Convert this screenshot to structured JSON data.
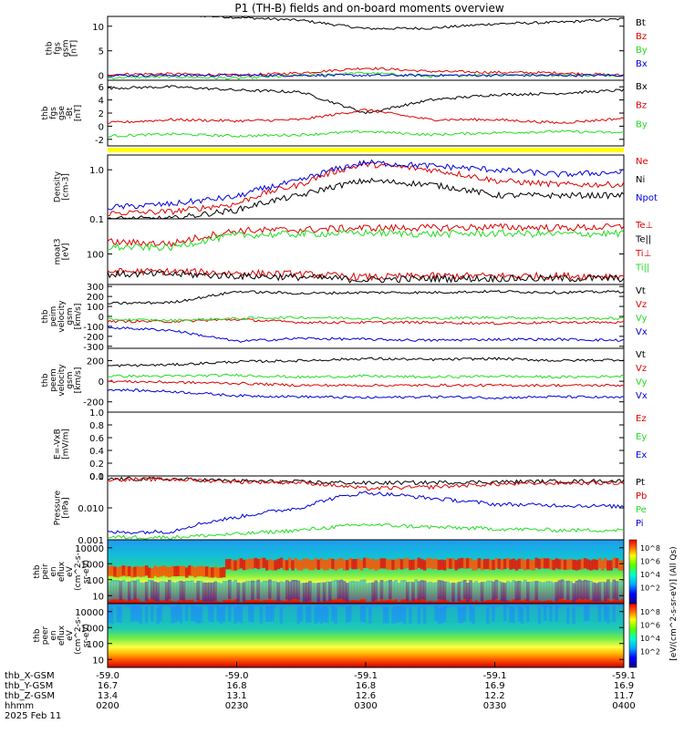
{
  "title": "P1 (TH-B) fields and on-board moments overview",
  "colors": {
    "black": "#000000",
    "red": "#e00000",
    "green": "#22dd22",
    "blue": "#0000dd",
    "yellow": "#ffff00"
  },
  "panels": [
    {
      "id": "fgs_gsm",
      "ylabel": [
        "thb",
        "fgs",
        "gsm",
        "[nT]"
      ],
      "ticks": [
        {
          "v": 10,
          "label": "10"
        },
        {
          "v": 5,
          "label": "5"
        },
        {
          "v": 0,
          "label": "0"
        }
      ],
      "legend": [
        {
          "label": "Bt",
          "color": "#000000"
        },
        {
          "label": "Bz",
          "color": "#e00000"
        },
        {
          "label": "By",
          "color": "#22dd22"
        },
        {
          "label": "Bx",
          "color": "#0000dd"
        }
      ]
    },
    {
      "id": "fgs_gse",
      "ylabel": [
        "thb",
        "fgs",
        "gse",
        "-Bt",
        "[nT]"
      ],
      "ticks": [
        {
          "v": 6,
          "label": "6"
        },
        {
          "v": 4,
          "label": "4"
        },
        {
          "v": 2,
          "label": "2"
        },
        {
          "v": 0,
          "label": "0"
        },
        {
          "v": -2,
          "label": "-2"
        }
      ],
      "legend": [
        {
          "label": "Bx",
          "color": "#000000"
        },
        {
          "label": "Bz",
          "color": "#e00000"
        },
        {
          "label": "By",
          "color": "#22dd22"
        }
      ]
    },
    {
      "id": "density",
      "ylabel": [
        "Density",
        "[cm-3]"
      ],
      "ticks": [
        {
          "v": 1.0,
          "label": "1.0"
        },
        {
          "v": 0.1,
          "label": "0.1"
        }
      ],
      "legend": [
        {
          "label": "Ne",
          "color": "#e00000"
        },
        {
          "label": "Ni",
          "color": "#000000"
        },
        {
          "label": "Npot",
          "color": "#0000dd"
        }
      ]
    },
    {
      "id": "temperature",
      "ylabel": [
        "moat3",
        "[eV]"
      ],
      "ticks": [
        {
          "v": 100,
          "label": "100"
        }
      ],
      "legend": [
        {
          "label": "Te⊥",
          "color": "#e00000"
        },
        {
          "label": "Te||",
          "color": "#000000"
        },
        {
          "label": "Ti⊥",
          "color": "#e00000"
        },
        {
          "label": "Ti||",
          "color": "#22dd22"
        }
      ]
    },
    {
      "id": "peim_velocity",
      "ylabel": [
        "thb",
        "peim",
        "velocity",
        "gsm",
        "[km/s]"
      ],
      "ticks": [
        {
          "v": 300,
          "label": "300"
        },
        {
          "v": 200,
          "label": "200"
        },
        {
          "v": 100,
          "label": "100"
        },
        {
          "v": 0,
          "label": "0"
        },
        {
          "v": -100,
          "label": "-100"
        },
        {
          "v": -200,
          "label": "-200"
        },
        {
          "v": -300,
          "label": "-300"
        }
      ],
      "legend": [
        {
          "label": "Vt",
          "color": "#000000"
        },
        {
          "label": "Vz",
          "color": "#e00000"
        },
        {
          "label": "Vy",
          "color": "#22dd22"
        },
        {
          "label": "Vx",
          "color": "#0000dd"
        }
      ]
    },
    {
      "id": "peem_velocity",
      "ylabel": [
        "thb",
        "peem",
        "velocity",
        "gsm",
        "[km/s]"
      ],
      "ticks": [
        {
          "v": 200,
          "label": "200"
        },
        {
          "v": 0,
          "label": "0"
        },
        {
          "v": -200,
          "label": "-200"
        }
      ],
      "legend": [
        {
          "label": "Vt",
          "color": "#000000"
        },
        {
          "label": "Vz",
          "color": "#e00000"
        },
        {
          "label": "Vy",
          "color": "#22dd22"
        },
        {
          "label": "Vx",
          "color": "#0000dd"
        }
      ]
    },
    {
      "id": "efield",
      "ylabel": [
        "E=-VxB",
        "[mV/m]"
      ],
      "ticks": [
        {
          "v": 1.0,
          "label": "1.0"
        },
        {
          "v": 0.8,
          "label": "0.8"
        },
        {
          "v": 0.6,
          "label": "0.6"
        },
        {
          "v": 0.4,
          "label": "0.4"
        },
        {
          "v": 0.2,
          "label": "0.2"
        },
        {
          "v": 0.0,
          "label": "0.0"
        }
      ],
      "legend": [
        {
          "label": "Ez",
          "color": "#e00000"
        },
        {
          "label": "Ey",
          "color": "#22dd22"
        },
        {
          "label": "Ex",
          "color": "#0000dd"
        }
      ]
    },
    {
      "id": "pressure",
      "ylabel": [
        "Pressure",
        "[nPa]"
      ],
      "ticks": [
        {
          "v": 0.1,
          "label": "0.1"
        },
        {
          "v": 0.01,
          "label": "0.010"
        },
        {
          "v": 0.001,
          "label": "0.001"
        }
      ],
      "legend": [
        {
          "label": "Pt",
          "color": "#000000"
        },
        {
          "label": "Pb",
          "color": "#e00000"
        },
        {
          "label": "Pe",
          "color": "#22dd22"
        },
        {
          "label": "Pi",
          "color": "#0000dd"
        }
      ]
    },
    {
      "id": "peir_spec",
      "ylabel": [
        "thb",
        "peir",
        "en",
        "eflux",
        "eV",
        "(cm^2-s-",
        "sr-eV)"
      ],
      "ticks": [
        {
          "v": 10000,
          "label": "10000"
        },
        {
          "v": 1000,
          "label": "1000"
        },
        {
          "v": 100,
          "label": "100"
        },
        {
          "v": 10,
          "label": "10"
        }
      ],
      "legend": []
    },
    {
      "id": "peer_spec",
      "ylabel": [
        "thb",
        "peer",
        "en",
        "eflux",
        "eV",
        "(cm^2-s-",
        "sr-eV)"
      ],
      "ticks": [
        {
          "v": 10000,
          "label": "10000"
        },
        {
          "v": 1000,
          "label": "1000"
        },
        {
          "v": 100,
          "label": "100"
        },
        {
          "v": 10,
          "label": "10"
        }
      ],
      "legend": []
    }
  ],
  "colorbar": {
    "label": "[eV/(cm^2-s-sr-eV)] (All Qs)",
    "ticks_upper": [
      "10^8",
      "10^6",
      "10^4",
      "10^2"
    ],
    "ticks_lower": [
      "10^8",
      "10^6",
      "10^4",
      "10^2"
    ]
  },
  "xaxis": {
    "rows": [
      {
        "label": "thb_X-GSM",
        "values": [
          "-59.0",
          "-59.0",
          "-59.1",
          "-59.1",
          "-59.1"
        ]
      },
      {
        "label": "thb_Y-GSM",
        "values": [
          "16.7",
          "16.8",
          "16.8",
          "16.9",
          "16.9"
        ]
      },
      {
        "label": "thb_Z-GSM",
        "values": [
          "13.4",
          "13.1",
          "12.6",
          "12.2",
          "11.7"
        ]
      },
      {
        "label": "hhmm",
        "values": [
          "0200",
          "0230",
          "0300",
          "0330",
          "0400"
        ]
      }
    ],
    "date": "2025 Feb 11"
  },
  "chart_data": {
    "type": "line",
    "title": "P1 (TH-B) fields and on-board moments overview",
    "x": [
      "0200",
      "0215",
      "0230",
      "0245",
      "0300",
      "0315",
      "0330",
      "0345",
      "0400"
    ],
    "panels": [
      {
        "name": "fgs_gsm",
        "ylim": [
          -1,
          12
        ],
        "series": [
          {
            "name": "Bt",
            "values": [
              12.3,
              12.4,
              11.8,
              11.2,
              9.5,
              9.6,
              10.5,
              10.8,
              11.5
            ]
          },
          {
            "name": "Bz",
            "values": [
              0.2,
              0.3,
              0.0,
              0.5,
              1.5,
              0.8,
              0.6,
              0.5,
              0.0
            ]
          },
          {
            "name": "By",
            "values": [
              -0.5,
              -0.3,
              -0.6,
              0.0,
              0.5,
              -0.2,
              0.2,
              0.0,
              0.0
            ]
          },
          {
            "name": "Bx",
            "values": [
              0.0,
              0.0,
              0.0,
              0.0,
              0.0,
              0.0,
              0.0,
              0.0,
              0.0
            ]
          }
        ]
      },
      {
        "name": "fgs_gse",
        "ylim": [
          -3,
          7
        ],
        "series": [
          {
            "name": "Bx",
            "values": [
              5.8,
              6.0,
              5.5,
              5.2,
              2.0,
              4.0,
              4.8,
              5.0,
              5.5
            ]
          },
          {
            "name": "Bz",
            "values": [
              0.5,
              1.0,
              0.8,
              1.0,
              2.5,
              1.0,
              1.0,
              0.5,
              1.2
            ]
          },
          {
            "name": "By",
            "values": [
              -1.5,
              -1.2,
              -1.5,
              -1.3,
              -0.8,
              -1.3,
              -1.0,
              -0.8,
              -1.0
            ]
          }
        ]
      },
      {
        "name": "density",
        "log": true,
        "ylim": [
          0.1,
          2.0
        ],
        "series": [
          {
            "name": "Ne",
            "values": [
              0.13,
              0.14,
              0.2,
              0.5,
              1.3,
              1.0,
              0.6,
              0.5,
              0.5
            ]
          },
          {
            "name": "Ni",
            "values": [
              0.1,
              0.1,
              0.15,
              0.3,
              0.6,
              0.5,
              0.3,
              0.3,
              0.3
            ]
          },
          {
            "name": "Npot",
            "values": [
              0.17,
              0.2,
              0.28,
              0.6,
              1.4,
              1.2,
              1.0,
              0.8,
              0.9
            ]
          }
        ]
      },
      {
        "name": "temperature",
        "log": true,
        "ylim": [
          30,
          400
        ],
        "series": [
          {
            "name": "Te⊥",
            "values": [
              50,
              50,
              47,
              45,
              40,
              42,
              42,
              42,
              42
            ]
          },
          {
            "name": "Te||",
            "values": [
              45,
              45,
              42,
              40,
              36,
              38,
              38,
              38,
              38
            ]
          },
          {
            "name": "Ti⊥",
            "values": [
              160,
              150,
              250,
              260,
              280,
              280,
              290,
              280,
              290
            ]
          },
          {
            "name": "Ti||",
            "values": [
              130,
              130,
              210,
              220,
              230,
              220,
              225,
              220,
              225
            ]
          }
        ]
      },
      {
        "name": "peim_velocity",
        "ylim": [
          -320,
          320
        ],
        "series": [
          {
            "name": "Vt",
            "values": [
              130,
              140,
              250,
              230,
              240,
              240,
              250,
              240,
              250
            ]
          },
          {
            "name": "Vz",
            "values": [
              -50,
              -50,
              -30,
              -60,
              -60,
              -60,
              -70,
              -60,
              -60
            ]
          },
          {
            "name": "Vy",
            "values": [
              -30,
              -40,
              -20,
              -10,
              -20,
              -20,
              -10,
              -20,
              -20
            ]
          },
          {
            "name": "Vx",
            "values": [
              -110,
              -140,
              -250,
              -220,
              -230,
              -240,
              -230,
              -230,
              -240
            ]
          }
        ]
      },
      {
        "name": "peem_velocity",
        "ylim": [
          -300,
          320
        ],
        "series": [
          {
            "name": "Vt",
            "values": [
              150,
              160,
              190,
              200,
              220,
              210,
              220,
              200,
              210
            ]
          },
          {
            "name": "Vz",
            "values": [
              0,
              -10,
              -20,
              -40,
              -40,
              -40,
              -40,
              -40,
              -40
            ]
          },
          {
            "name": "Vy",
            "values": [
              50,
              50,
              60,
              40,
              50,
              40,
              50,
              40,
              50
            ]
          },
          {
            "name": "Vx",
            "values": [
              -80,
              -100,
              -140,
              -150,
              -160,
              -150,
              -160,
              -150,
              -160
            ]
          }
        ]
      },
      {
        "name": "pressure",
        "log": true,
        "ylim": [
          0.001,
          0.1
        ],
        "series": [
          {
            "name": "Pt",
            "values": [
              0.08,
              0.08,
              0.07,
              0.065,
              0.06,
              0.062,
              0.065,
              0.068,
              0.07
            ]
          },
          {
            "name": "Pb",
            "values": [
              0.078,
              0.078,
              0.066,
              0.062,
              0.04,
              0.045,
              0.055,
              0.06,
              0.06
            ]
          },
          {
            "name": "Pe",
            "values": [
              0.0012,
              0.0012,
              0.0015,
              0.002,
              0.003,
              0.0025,
              0.0022,
              0.002,
              0.002
            ]
          },
          {
            "name": "Pi",
            "values": [
              0.0017,
              0.0018,
              0.005,
              0.01,
              0.03,
              0.02,
              0.013,
              0.012,
              0.011
            ]
          }
        ]
      }
    ]
  }
}
